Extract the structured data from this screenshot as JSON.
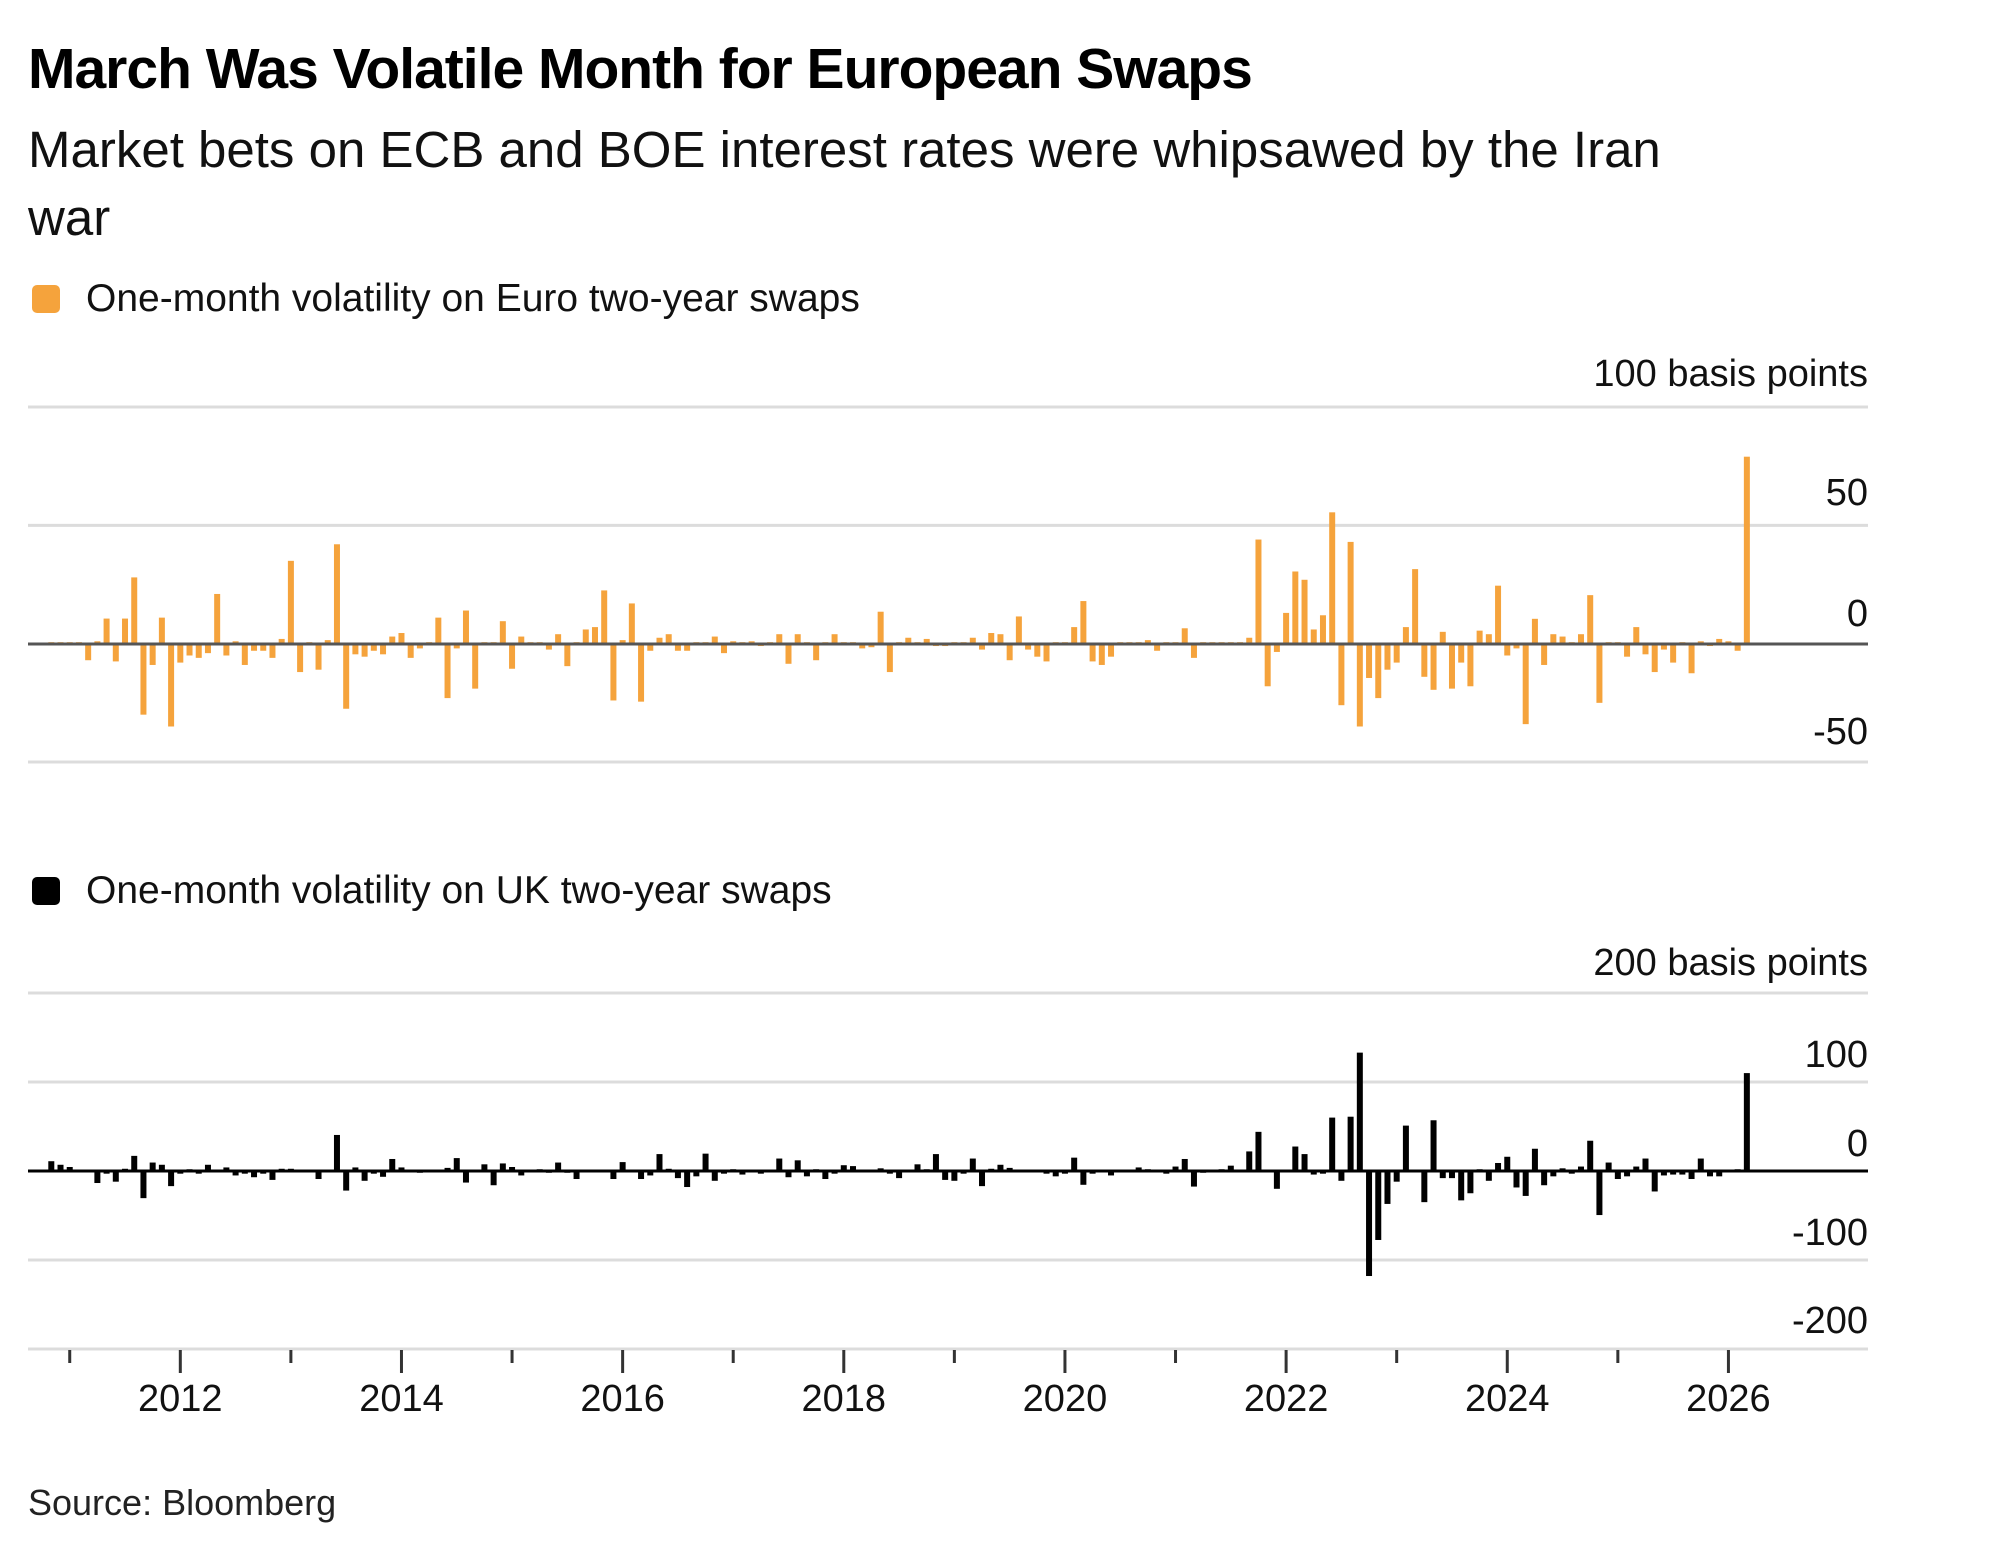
{
  "title": "March Was Volatile Month for European Swaps",
  "subtitle_line1": "Market bets on ECB and BOE interest rates were whipsawed by the Iran",
  "subtitle_line2": "war",
  "source": "Source: Bloomberg",
  "colors": {
    "euro": "#f5a33c",
    "uk": "#000000",
    "grid": "#dcdcdc"
  },
  "chart_data": [
    {
      "type": "bar",
      "title": "One-month volatility on Euro two-year swaps",
      "legend": "One-month volatility on Euro two-year swaps",
      "ylabel": "100 basis points",
      "unit_label": "100 basis points",
      "ylim": [
        -50,
        100
      ],
      "yticks": [
        100,
        50,
        0,
        -50
      ],
      "ytick_labels": [
        "50",
        "0",
        "-50"
      ],
      "grid": true,
      "x_start": "2010-11",
      "x_frequency": "monthly",
      "x_end": "2026-03",
      "values": [
        0,
        0,
        0,
        0,
        -7,
        1,
        10.6,
        -7.5,
        10.6,
        28,
        -30,
        -9,
        11,
        -35,
        -8,
        -5,
        -6,
        -4,
        21,
        -5,
        1,
        -9,
        -3,
        -3,
        -6,
        2,
        35,
        -12,
        0,
        -11,
        1.5,
        42,
        -27.5,
        -4.5,
        -5.5,
        -3,
        -4.5,
        3,
        4.5,
        -6,
        -2,
        0,
        11,
        -23,
        -2,
        14,
        -19,
        0,
        0,
        9.5,
        -10.6,
        3,
        0,
        0,
        -2.5,
        4,
        -9.5,
        0,
        6,
        7,
        22.5,
        -24,
        1.5,
        17,
        -24.5,
        -3,
        2.5,
        4,
        -3,
        -3,
        0,
        0,
        3,
        -4,
        1,
        0,
        1,
        -1,
        0,
        4,
        -8.5,
        4,
        0,
        -7,
        0,
        4,
        0,
        0,
        -2,
        -1.5,
        13.5,
        -12,
        0,
        2.5,
        0,
        2,
        -1,
        -1,
        0,
        0,
        2.5,
        -2.5,
        4.5,
        4,
        -7,
        11.5,
        -2.5,
        -5.5,
        -7.5,
        0,
        0,
        7,
        18,
        -7.5,
        -9,
        -5.5,
        0,
        0.5,
        0,
        1.5,
        -3,
        0,
        0,
        6.5,
        -6,
        0,
        0,
        0,
        0,
        0,
        2.5,
        44,
        -18,
        -3.5,
        13,
        30.5,
        27,
        6,
        12,
        55.5,
        -26,
        43,
        -35,
        -14.5,
        -23,
        -11,
        -8,
        7,
        31.5,
        -14,
        -19.5,
        5,
        -19,
        -8,
        -18,
        5.5,
        4,
        24.5,
        -5,
        -2,
        -34,
        10.5,
        -9,
        4,
        3,
        0,
        4,
        20.5,
        -25,
        0,
        0,
        -5.5,
        7,
        -4.5,
        -12,
        -2.5,
        -8,
        0,
        -12.5,
        1,
        -1,
        2,
        1,
        -3,
        79
      ]
    },
    {
      "type": "bar",
      "title": "One-month volatility on UK two-year swaps",
      "legend": "One-month volatility on UK two-year swaps",
      "ylabel": "200 basis points",
      "unit_label": "200 basis points",
      "ylim": [
        -200,
        200
      ],
      "yticks": [
        200,
        100,
        0,
        -100,
        -200
      ],
      "ytick_labels": [
        "100",
        "0",
        "-100",
        "-200"
      ],
      "grid": true,
      "x_start": "2010-11",
      "x_frequency": "monthly",
      "x_end": "2026-03",
      "values": [
        11,
        7,
        4.5,
        0,
        0,
        -13.5,
        -3,
        -12,
        2.5,
        17,
        -30.5,
        9.5,
        7,
        -17,
        -3,
        2,
        -3,
        7,
        0,
        4,
        -5,
        -3,
        -7,
        -3,
        -10,
        2.5,
        2.5,
        0,
        0,
        -9,
        1.5,
        40.5,
        -22,
        4,
        -11,
        -3,
        -6.5,
        13.5,
        4,
        0,
        -2,
        0,
        0,
        3.5,
        14.5,
        -13,
        0,
        7.5,
        -16,
        8.5,
        4.5,
        -5,
        0,
        2,
        -2,
        9.5,
        -2,
        -9,
        0,
        0,
        0,
        -9,
        10,
        0,
        -9,
        -5,
        19,
        2.5,
        -8,
        -18,
        -6,
        19.5,
        -11,
        -3,
        2,
        -4,
        0,
        -3,
        1,
        14,
        -7,
        12,
        -6,
        2,
        -9,
        -3,
        6.5,
        5.5,
        0,
        0,
        3,
        -3,
        -8,
        0,
        7.5,
        2,
        19,
        -10,
        -11,
        -3,
        14,
        -17,
        2.5,
        7,
        3.5,
        1,
        0,
        0,
        -3,
        -6,
        -3,
        15,
        -15.5,
        -3,
        0,
        -5,
        0,
        0,
        4,
        2,
        0,
        -3,
        5,
        13.5,
        -17.5,
        -2,
        0,
        2,
        6,
        0,
        22,
        44,
        0,
        -20,
        0,
        27.5,
        19,
        -4,
        -3,
        60,
        -11,
        61,
        133,
        -118,
        -77.5,
        -37,
        -12,
        51,
        0,
        -35,
        57,
        -8,
        -8,
        -33,
        -25,
        2,
        -11,
        9,
        16,
        -18.5,
        -28,
        25,
        -16,
        -6,
        3,
        -3,
        5,
        34,
        -49.5,
        9.5,
        -9,
        -6,
        5,
        14,
        -23,
        -5,
        -4,
        -4,
        -9,
        14,
        -6,
        -6,
        0,
        2,
        110
      ]
    }
  ],
  "x_axis": {
    "tick_labels": [
      "2012",
      "2014",
      "2016",
      "2018",
      "2020",
      "2022",
      "2024",
      "2026"
    ]
  }
}
